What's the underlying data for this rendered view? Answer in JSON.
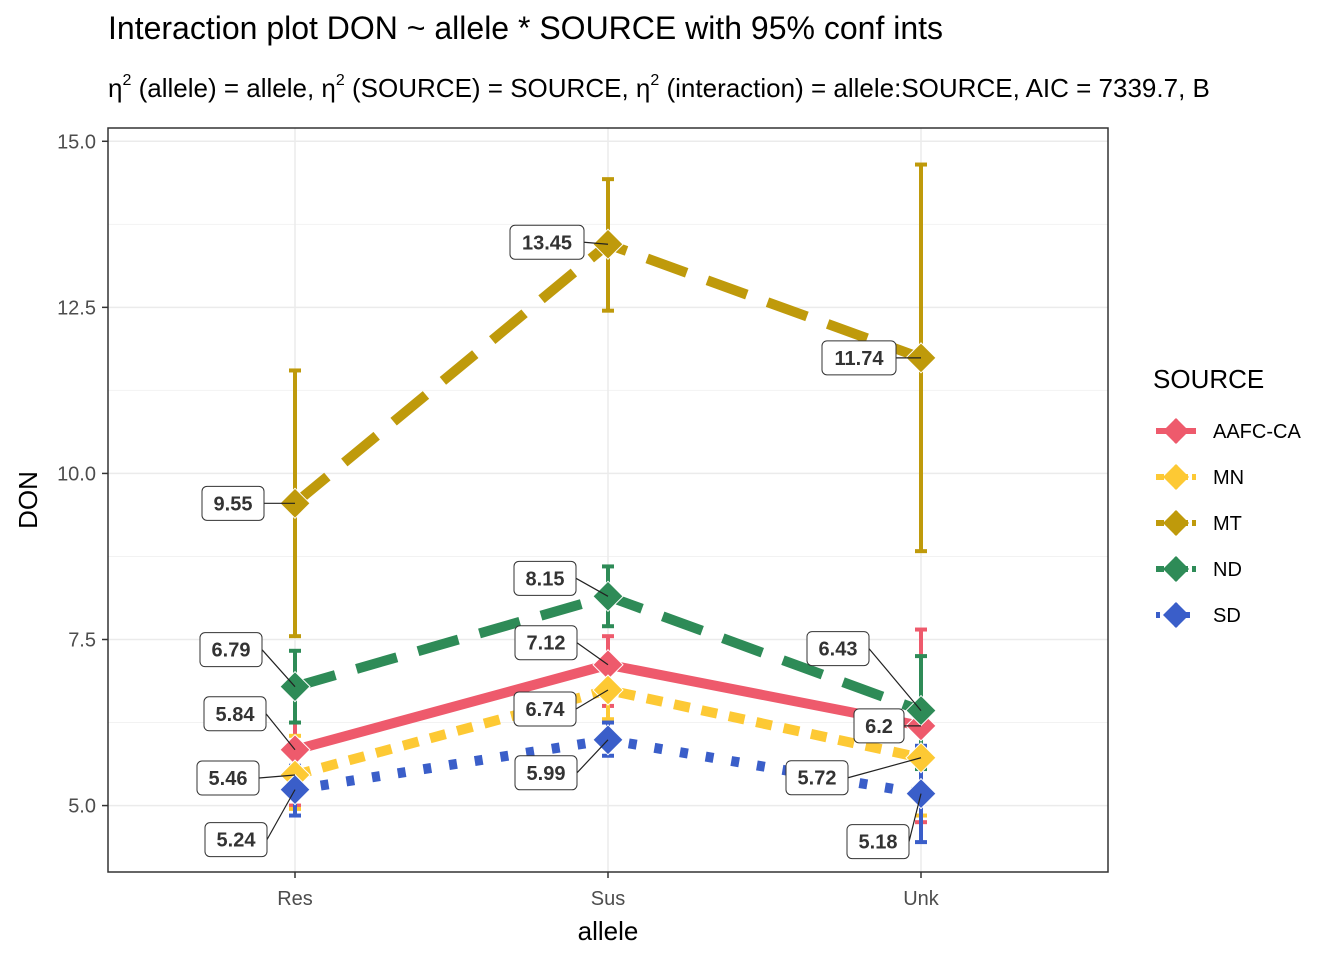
{
  "title": "Interaction plot  DON ~ allele * SOURCE with 95% conf ints",
  "subtitle": {
    "eta": "η",
    "sq": "2",
    "part1": " (allele) = allele, ",
    "part2": " (SOURCE) = SOURCE, ",
    "part3": " (interaction) = allele:SOURCE, AIC = 7339.7, B"
  },
  "colors": {
    "AAFC-CA": "#ee5a6c",
    "MN": "#fdc934",
    "MT": "#bf9a0b",
    "ND": "#2e8b57",
    "SD": "#3a5ec9"
  },
  "chart_data": {
    "type": "line",
    "xlabel": "allele",
    "ylabel": "DON",
    "categories": [
      "Res",
      "Sus",
      "Unk"
    ],
    "ylim": [
      4.0,
      15.2
    ],
    "yticks": [
      5.0,
      7.5,
      10.0,
      12.5,
      15.0
    ],
    "ytick_labels": [
      "5.0",
      "7.5",
      "10.0",
      "12.5",
      "15.0"
    ],
    "grid": true,
    "legend_position": "right",
    "legend_title": "SOURCE",
    "series": [
      {
        "name": "AAFC-CA",
        "linetype": "solid",
        "values": [
          5.84,
          7.12,
          6.2
        ],
        "ci_low": [
          5.0,
          6.5,
          4.75
        ],
        "ci_high": [
          6.7,
          7.55,
          7.65
        ],
        "labels": [
          "5.84",
          "7.12",
          "6.2"
        ]
      },
      {
        "name": "MN",
        "linetype": "dashed",
        "values": [
          5.46,
          6.74,
          5.72
        ],
        "ci_low": [
          4.95,
          6.3,
          4.85
        ],
        "ci_high": [
          6.05,
          7.2,
          6.5
        ],
        "labels": [
          "5.46",
          "6.74",
          "5.72"
        ]
      },
      {
        "name": "MT",
        "linetype": "longdash",
        "values": [
          9.55,
          13.45,
          11.74
        ],
        "ci_low": [
          7.55,
          12.45,
          8.83
        ],
        "ci_high": [
          11.55,
          14.43,
          14.65
        ],
        "labels": [
          "9.55",
          "13.45",
          "11.74"
        ]
      },
      {
        "name": "ND",
        "linetype": "longdash",
        "values": [
          6.79,
          8.15,
          6.43
        ],
        "ci_low": [
          6.25,
          7.7,
          5.55
        ],
        "ci_high": [
          7.33,
          8.6,
          7.25
        ],
        "labels": [
          "6.79",
          "8.15",
          "6.43"
        ]
      },
      {
        "name": "SD",
        "linetype": "dotted",
        "values": [
          5.24,
          5.99,
          5.18
        ],
        "ci_low": [
          4.85,
          5.75,
          4.45
        ],
        "ci_high": [
          5.6,
          6.25,
          5.9
        ],
        "labels": [
          "5.24",
          "5.99",
          "5.18"
        ]
      }
    ]
  }
}
